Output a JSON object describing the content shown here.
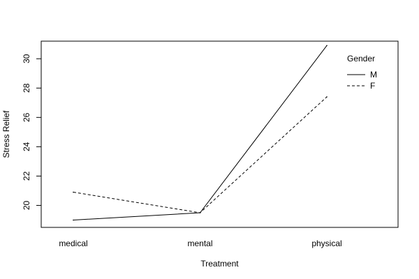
{
  "chart_data": {
    "type": "line",
    "categories": [
      "medical",
      "mental",
      "physical"
    ],
    "xlabel": "Treatment",
    "ylabel": "Stress Relief",
    "ylim": [
      18.5,
      31.2
    ],
    "yticks": [
      20,
      22,
      24,
      26,
      28,
      30
    ],
    "grid": false,
    "legend": {
      "title": "Gender",
      "placement": "top-right"
    },
    "series": [
      {
        "name": "M",
        "values": [
          19.0,
          19.5,
          30.9
        ],
        "color": "#000000",
        "dash": "solid"
      },
      {
        "name": "F",
        "values": [
          20.9,
          19.5,
          27.4
        ],
        "color": "#000000",
        "dash": "dashed"
      }
    ]
  }
}
